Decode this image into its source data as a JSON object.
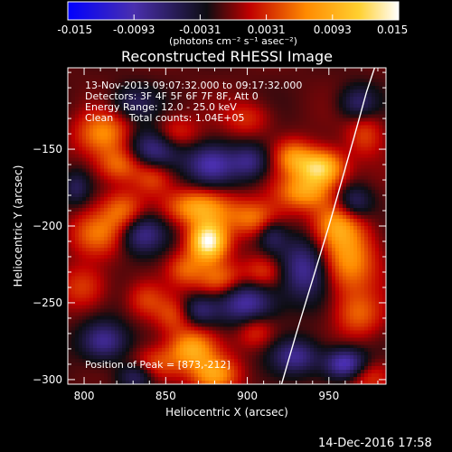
{
  "chart_data": {
    "type": "heatmap",
    "title": "Reconstructed RHESSI Image",
    "xlabel": "Heliocentric X (arcsec)",
    "ylabel": "Heliocentric Y (arcsec)",
    "xlim": [
      790,
      985
    ],
    "ylim": [
      -303,
      -97
    ],
    "xticks": [
      800,
      850,
      900,
      950
    ],
    "yticks": [
      -150,
      -200,
      -250,
      -300
    ],
    "colorbar": {
      "min": -0.015,
      "max": 0.015,
      "ticks": [
        "-0.015",
        "-0.0093",
        "-0.0031",
        "0.0031",
        "0.0093",
        "0.015"
      ],
      "label": "(photons cm⁻² s⁻¹ asec⁻²)",
      "colors": [
        "#0000ff",
        "#4a2fae",
        "#0d0d12",
        "#ff0000",
        "#ff8a00",
        "#ffd030",
        "#ffffff"
      ]
    },
    "annotations": [
      "13-Nov-2013 09:07:32.000 to 09:17:32.000",
      "Detectors: 3F 4F 5F 6F 7F 8F, Att 0",
      "Energy Range: 12.0 - 25.0 keV",
      "Clean     Total counts: 1.04E+05"
    ],
    "peak_label": "Position of Peak = [873,-212]",
    "peak": [
      873,
      -212
    ],
    "limb_curve": [
      [
        921,
        -303
      ],
      [
        930,
        -270
      ],
      [
        940,
        -235
      ],
      [
        950,
        -200
      ],
      [
        958,
        -170
      ],
      [
        966,
        -140
      ],
      [
        973,
        -113
      ],
      [
        978,
        -97
      ]
    ],
    "sources": [
      {
        "x": 876,
        "y": -210,
        "v": 1.0,
        "sx": 8,
        "sy": 9
      },
      {
        "x": 870,
        "y": -188,
        "v": 0.6,
        "sx": 14,
        "sy": 8
      },
      {
        "x": 883,
        "y": -235,
        "v": 0.45,
        "sx": 10,
        "sy": 8
      },
      {
        "x": 862,
        "y": -228,
        "v": 0.35,
        "sx": 8,
        "sy": 8
      },
      {
        "x": 945,
        "y": -162,
        "v": 0.85,
        "sx": 10,
        "sy": 8
      },
      {
        "x": 935,
        "y": -178,
        "v": 0.55,
        "sx": 12,
        "sy": 8
      },
      {
        "x": 928,
        "y": -155,
        "v": 0.45,
        "sx": 8,
        "sy": 8
      },
      {
        "x": 962,
        "y": -222,
        "v": 0.55,
        "sx": 12,
        "sy": 16
      },
      {
        "x": 955,
        "y": -198,
        "v": 0.45,
        "sx": 10,
        "sy": 10
      },
      {
        "x": 968,
        "y": -258,
        "v": 0.35,
        "sx": 10,
        "sy": 10
      },
      {
        "x": 812,
        "y": -140,
        "v": 0.5,
        "sx": 12,
        "sy": 10
      },
      {
        "x": 822,
        "y": -160,
        "v": 0.45,
        "sx": 10,
        "sy": 8
      },
      {
        "x": 808,
        "y": -205,
        "v": 0.4,
        "sx": 12,
        "sy": 10
      },
      {
        "x": 824,
        "y": -190,
        "v": 0.4,
        "sx": 9,
        "sy": 9
      },
      {
        "x": 800,
        "y": -240,
        "v": 0.3,
        "sx": 10,
        "sy": 10
      },
      {
        "x": 855,
        "y": -140,
        "v": 0.35,
        "sx": 10,
        "sy": 8
      },
      {
        "x": 842,
        "y": -168,
        "v": 0.3,
        "sx": 8,
        "sy": 8
      },
      {
        "x": 905,
        "y": -195,
        "v": 0.45,
        "sx": 12,
        "sy": 8
      },
      {
        "x": 910,
        "y": -230,
        "v": 0.3,
        "sx": 9,
        "sy": 8
      },
      {
        "x": 866,
        "y": -280,
        "v": 0.6,
        "sx": 10,
        "sy": 9
      },
      {
        "x": 880,
        "y": -297,
        "v": 0.55,
        "sx": 10,
        "sy": 8
      },
      {
        "x": 845,
        "y": -290,
        "v": 0.35,
        "sx": 10,
        "sy": 8
      },
      {
        "x": 855,
        "y": -258,
        "v": 0.3,
        "sx": 8,
        "sy": 8
      },
      {
        "x": 905,
        "y": -268,
        "v": 0.3,
        "sx": 8,
        "sy": 8
      },
      {
        "x": 975,
        "y": -298,
        "v": 0.3,
        "sx": 10,
        "sy": 8
      },
      {
        "x": 972,
        "y": -140,
        "v": 0.3,
        "sx": 8,
        "sy": 10
      },
      {
        "x": 838,
        "y": -248,
        "v": 0.25,
        "sx": 8,
        "sy": 8
      },
      {
        "x": 900,
        "y": -130,
        "v": 0.25,
        "sx": 10,
        "sy": 8
      },
      {
        "x": 843,
        "y": -150,
        "v": -0.55,
        "sx": 12,
        "sy": 10
      },
      {
        "x": 878,
        "y": -160,
        "v": -0.5,
        "sx": 11,
        "sy": 9
      },
      {
        "x": 902,
        "y": -158,
        "v": -0.4,
        "sx": 8,
        "sy": 8
      },
      {
        "x": 835,
        "y": -205,
        "v": -0.45,
        "sx": 10,
        "sy": 9
      },
      {
        "x": 900,
        "y": -250,
        "v": -0.55,
        "sx": 12,
        "sy": 10
      },
      {
        "x": 935,
        "y": -228,
        "v": -0.5,
        "sx": 11,
        "sy": 14
      },
      {
        "x": 960,
        "y": -290,
        "v": -0.65,
        "sx": 9,
        "sy": 7
      },
      {
        "x": 930,
        "y": -285,
        "v": -0.45,
        "sx": 10,
        "sy": 8
      },
      {
        "x": 812,
        "y": -275,
        "v": -0.5,
        "sx": 10,
        "sy": 9
      },
      {
        "x": 832,
        "y": -298,
        "v": -0.35,
        "sx": 8,
        "sy": 6
      },
      {
        "x": 965,
        "y": -185,
        "v": -0.4,
        "sx": 8,
        "sy": 8
      },
      {
        "x": 968,
        "y": -120,
        "v": -0.35,
        "sx": 8,
        "sy": 8
      },
      {
        "x": 795,
        "y": -175,
        "v": -0.3,
        "sx": 6,
        "sy": 8
      },
      {
        "x": 870,
        "y": -255,
        "v": -0.35,
        "sx": 8,
        "sy": 7
      },
      {
        "x": 915,
        "y": -205,
        "v": -0.3,
        "sx": 6,
        "sy": 8
      },
      {
        "x": 830,
        "y": -120,
        "v": -0.3,
        "sx": 10,
        "sy": 8
      }
    ]
  },
  "footer": {
    "datetime": "14-Dec-2016 17:58"
  }
}
